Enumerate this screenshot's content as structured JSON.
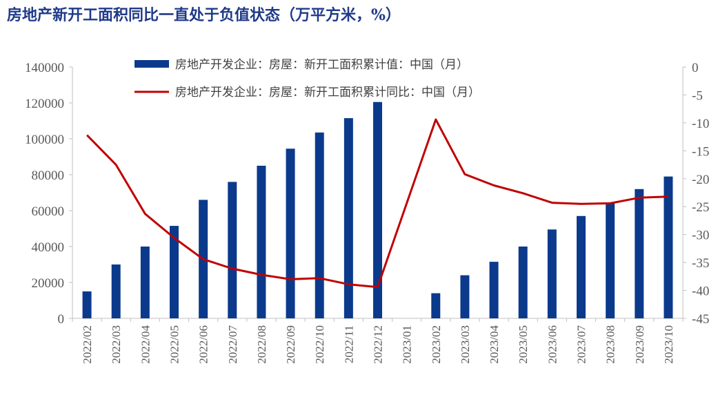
{
  "title": "房地产新开工面积同比一直处于负值状态（万平方米，%）",
  "colors": {
    "bar": "#0b3a8c",
    "line": "#c00000",
    "title": "#1f3a8a",
    "axis": "#bfbfbf"
  },
  "chart_data": {
    "type": "bar+line",
    "categories": [
      "2022/02",
      "2022/03",
      "2022/04",
      "2022/05",
      "2022/06",
      "2022/07",
      "2022/08",
      "2022/09",
      "2022/10",
      "2022/11",
      "2022/12",
      "2023/01",
      "2023/02",
      "2023/03",
      "2023/04",
      "2023/05",
      "2023/06",
      "2023/07",
      "2023/08",
      "2023/09",
      "2023/10"
    ],
    "series": [
      {
        "name": "房地产开发企业：房屋：新开工面积累计值：中国（月）",
        "type": "bar",
        "axis": "left",
        "values": [
          15000,
          30000,
          40000,
          51500,
          66000,
          76000,
          85000,
          94500,
          103500,
          111500,
          120500,
          null,
          14000,
          24000,
          31500,
          40000,
          49500,
          57000,
          64500,
          72000,
          79000
        ]
      },
      {
        "name": "房地产开发企业：房屋：新开工面积累计同比：中国（月）",
        "type": "line",
        "axis": "right",
        "values": [
          -12.2,
          -17.5,
          -26.3,
          -30.6,
          -34.4,
          -36.1,
          -37.2,
          -38.0,
          -37.8,
          -38.9,
          -39.4,
          null,
          -9.4,
          -19.2,
          -21.2,
          -22.6,
          -24.3,
          -24.5,
          -24.4,
          -23.4,
          -23.2
        ]
      }
    ],
    "y_left": {
      "min": 0,
      "max": 140000,
      "ticks": [
        "0",
        "20000",
        "40000",
        "60000",
        "80000",
        "100000",
        "120000",
        "140000"
      ]
    },
    "y_right": {
      "min": -45,
      "max": 0,
      "ticks": [
        "0",
        "-5",
        "-10",
        "-15",
        "-20",
        "-25",
        "-30",
        "-35",
        "-40",
        "-45"
      ]
    },
    "xlabel": "",
    "ylabel": "",
    "grid": false,
    "legend_position": "top-center"
  }
}
